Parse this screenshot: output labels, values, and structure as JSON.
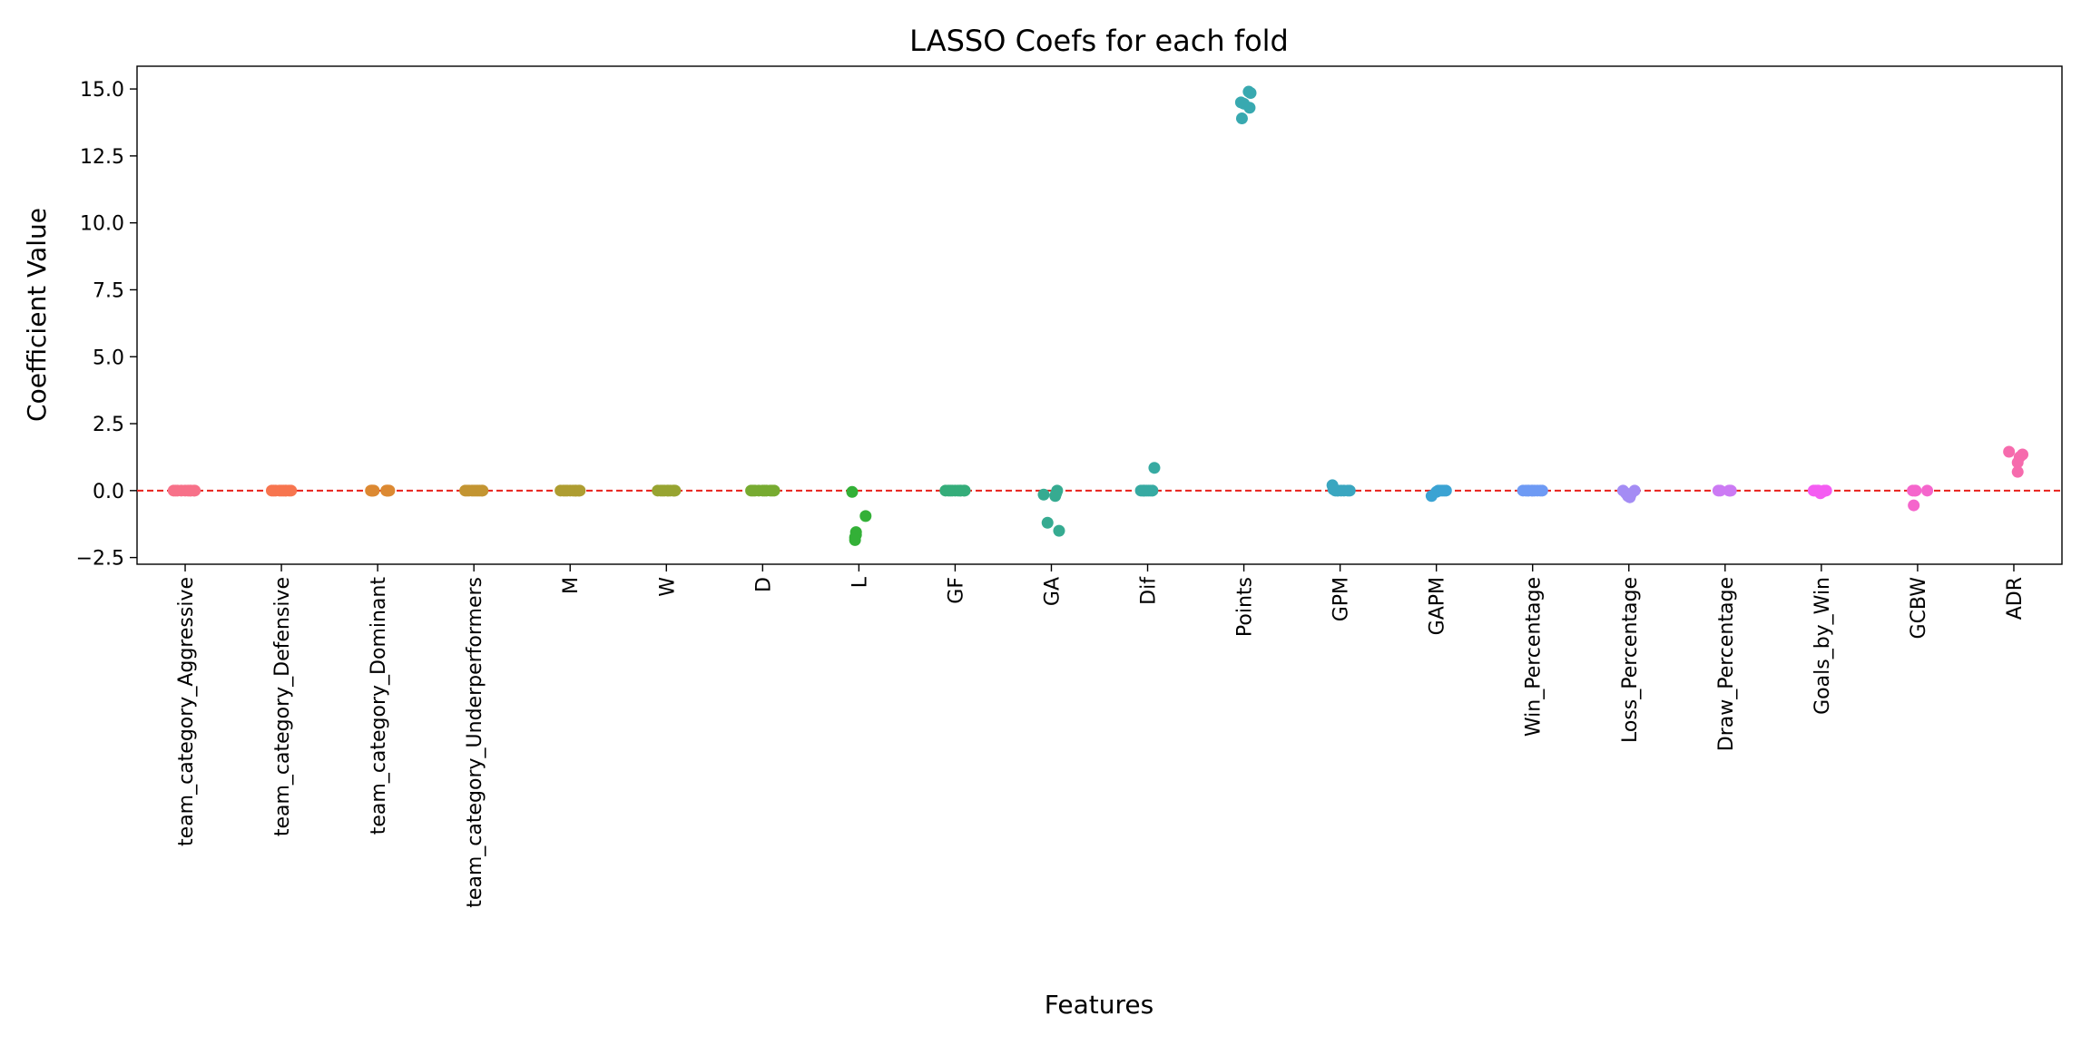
{
  "chart_data": {
    "type": "scatter",
    "title": "LASSO Coefs for each fold",
    "xlabel": "Features",
    "ylabel": "Coefficient Value",
    "ylim": [
      -2.75,
      15.85
    ],
    "yticks": [
      -2.5,
      0.0,
      2.5,
      5.0,
      7.5,
      10.0,
      12.5,
      15.0
    ],
    "ytick_labels": [
      "−2.5",
      "0.0",
      "2.5",
      "5.0",
      "7.5",
      "10.0",
      "12.5",
      "15.0"
    ],
    "grid": false,
    "legend": "none",
    "reference_line": {
      "y": 0,
      "color": "#e8201a",
      "style": "dashed"
    },
    "categories": [
      "team_category_Aggressive",
      "team_category_Defensive",
      "team_category_Dominant",
      "team_category_Underperformers",
      "M",
      "W",
      "D",
      "L",
      "GF",
      "GA",
      "Dif",
      "Points",
      "GPM",
      "GAPM",
      "Win_Percentage",
      "Loss_Percentage",
      "Draw_Percentage",
      "Goals_by_Win",
      "GCBW",
      "ADR"
    ],
    "colors": [
      "#f77189",
      "#f7754f",
      "#dc8932",
      "#c39532",
      "#ae9d31",
      "#97a431",
      "#77ab31",
      "#33b037",
      "#35ad7a",
      "#36ab91",
      "#37aaa2",
      "#38a9b0",
      "#3aa6c0",
      "#3ba3d3",
      "#6e9af4",
      "#a48cf4",
      "#cc7af4",
      "#f45cf2",
      "#f565cc",
      "#f66bad"
    ],
    "series": [
      {
        "category": "team_category_Aggressive",
        "values": [
          0,
          0,
          0,
          0,
          0,
          0,
          0,
          0,
          0,
          0
        ],
        "jitter": [
          -0.12,
          -0.08,
          -0.04,
          0,
          0.03,
          0.06,
          0.09,
          -0.1,
          0.05,
          0.1
        ]
      },
      {
        "category": "team_category_Defensive",
        "values": [
          0,
          0,
          0,
          0,
          0,
          0,
          0,
          0,
          0,
          0
        ],
        "jitter": [
          -0.1,
          -0.06,
          -0.02,
          0.02,
          0.05,
          0.08,
          0.1,
          -0.08,
          0.0,
          0.04
        ]
      },
      {
        "category": "team_category_Dominant",
        "values": [
          0,
          0,
          0,
          0,
          0,
          0,
          0,
          0,
          0,
          0
        ],
        "jitter": [
          -0.07,
          -0.06,
          -0.05,
          0.1,
          0.11,
          0.12,
          -0.04,
          0.09,
          -0.06,
          0.1
        ]
      },
      {
        "category": "team_category_Underperformers",
        "values": [
          0,
          0,
          0,
          0,
          0,
          0,
          0,
          0,
          0,
          0
        ],
        "jitter": [
          -0.09,
          -0.05,
          -0.02,
          0.02,
          0.06,
          0.09,
          -0.07,
          0.04,
          0.0,
          0.08
        ]
      },
      {
        "category": "M",
        "values": [
          0,
          0,
          0,
          0,
          0,
          0,
          0,
          0,
          0,
          0
        ],
        "jitter": [
          -0.1,
          -0.07,
          -0.03,
          0.0,
          0.03,
          0.06,
          0.09,
          -0.05,
          0.05,
          0.1
        ]
      },
      {
        "category": "W",
        "values": [
          0,
          0,
          0,
          0,
          0,
          0,
          0,
          0,
          0,
          0
        ],
        "jitter": [
          -0.09,
          -0.06,
          -0.02,
          0.01,
          0.04,
          0.07,
          0.09,
          -0.04,
          0.02,
          0.08
        ]
      },
      {
        "category": "D",
        "values": [
          0,
          0,
          0,
          0,
          0,
          0,
          0,
          0,
          0,
          0
        ],
        "jitter": [
          -0.12,
          -0.08,
          -0.04,
          0.0,
          0.04,
          0.08,
          0.12,
          -0.1,
          0.02,
          0.1
        ]
      },
      {
        "category": "L",
        "values": [
          -0.05,
          -0.95,
          -1.55,
          -1.65,
          -1.75,
          -1.85
        ],
        "jitter": [
          -0.07,
          0.07,
          -0.03,
          -0.03,
          -0.04,
          -0.04
        ]
      },
      {
        "category": "GF",
        "values": [
          0,
          0,
          0,
          0,
          0,
          0,
          0,
          0,
          0,
          0
        ],
        "jitter": [
          -0.1,
          -0.07,
          -0.03,
          0.0,
          0.03,
          0.06,
          0.09,
          -0.05,
          0.05,
          0.1
        ]
      },
      {
        "category": "GA",
        "values": [
          0,
          -0.15,
          -0.2,
          -0.1,
          -1.2,
          -1.5
        ],
        "jitter": [
          0.06,
          -0.08,
          0.04,
          0.05,
          -0.04,
          0.08
        ]
      },
      {
        "category": "Dif",
        "values": [
          0.85,
          0,
          0,
          0,
          0,
          0,
          0,
          0,
          0
        ],
        "jitter": [
          0.07,
          -0.07,
          -0.05,
          -0.03,
          -0.01,
          0.01,
          0.03,
          0.05,
          -0.04
        ]
      },
      {
        "category": "Points",
        "values": [
          14.9,
          14.85,
          14.5,
          14.45,
          14.3,
          13.9
        ],
        "jitter": [
          0.05,
          0.07,
          -0.03,
          0.0,
          0.06,
          -0.02
        ]
      },
      {
        "category": "GPM",
        "values": [
          0.2,
          0.05,
          0,
          0,
          0,
          0,
          0,
          0,
          0
        ],
        "jitter": [
          -0.08,
          -0.07,
          -0.05,
          -0.02,
          0.01,
          0.04,
          0.08,
          0.1,
          -0.03
        ]
      },
      {
        "category": "GAPM",
        "values": [
          -0.2,
          -0.05,
          0,
          0,
          0,
          0,
          0
        ],
        "jitter": [
          -0.05,
          0.0,
          0.02,
          0.04,
          0.06,
          0.08,
          0.1
        ]
      },
      {
        "category": "Win_Percentage",
        "values": [
          0,
          0,
          0,
          0,
          0,
          0,
          0,
          0,
          0,
          0
        ],
        "jitter": [
          -0.1,
          -0.07,
          -0.04,
          -0.01,
          0.02,
          0.05,
          0.08,
          -0.05,
          0.0,
          0.1
        ]
      },
      {
        "category": "Loss_Percentage",
        "values": [
          -0.1,
          -0.2,
          -0.25,
          -0.15,
          0,
          0
        ],
        "jitter": [
          -0.03,
          -0.01,
          0.01,
          0.02,
          0.06,
          -0.06
        ]
      },
      {
        "category": "Draw_Percentage",
        "values": [
          0,
          0,
          0,
          0,
          0
        ],
        "jitter": [
          -0.07,
          -0.05,
          0.04,
          0.05,
          0.06
        ]
      },
      {
        "category": "Goals_by_Win",
        "values": [
          0,
          0,
          0,
          -0.1,
          -0.05,
          0,
          0,
          0
        ],
        "jitter": [
          -0.08,
          -0.06,
          -0.03,
          -0.01,
          0.01,
          0.03,
          0.05,
          -0.04
        ]
      },
      {
        "category": "GCBW",
        "values": [
          0,
          0,
          -0.55,
          0,
          0
        ],
        "jitter": [
          -0.05,
          -0.03,
          -0.04,
          0.1,
          -0.02
        ]
      },
      {
        "category": "ADR",
        "values": [
          1.45,
          1.35,
          1.25,
          1.05,
          0.7
        ],
        "jitter": [
          -0.05,
          0.09,
          0.06,
          0.04,
          0.04
        ]
      }
    ]
  }
}
